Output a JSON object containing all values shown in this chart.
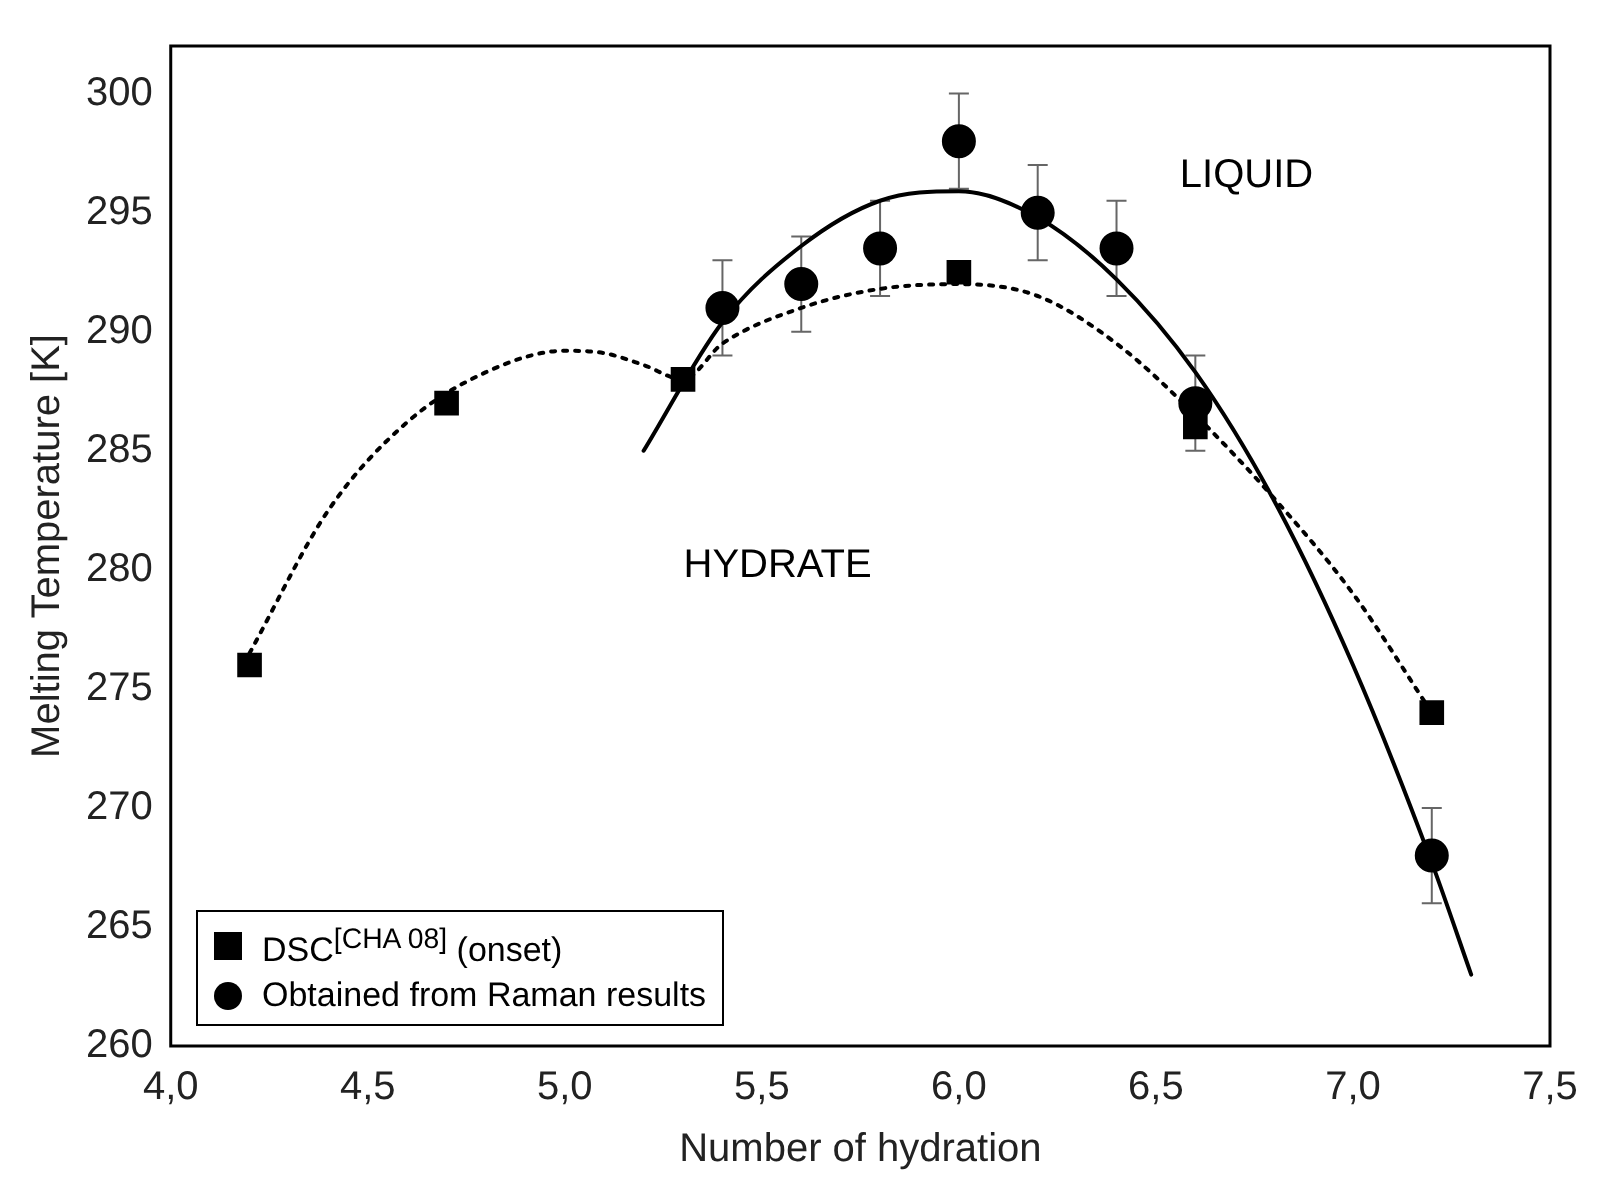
{
  "chart_data": {
    "type": "scatter",
    "xlabel": "Number of hydration",
    "ylabel": "Melting Temperature [K]",
    "xlim": [
      4.0,
      7.5
    ],
    "xticks": [
      {
        "value": 4.0,
        "label": "4,0"
      },
      {
        "value": 4.5,
        "label": "4,5"
      },
      {
        "value": 5.0,
        "label": "5,0"
      },
      {
        "value": 5.5,
        "label": "5,5"
      },
      {
        "value": 6.0,
        "label": "6,0"
      },
      {
        "value": 6.5,
        "label": "6,5"
      },
      {
        "value": 7.0,
        "label": "7,0"
      },
      {
        "value": 7.5,
        "label": "7,5"
      }
    ],
    "ylim": [
      260,
      302
    ],
    "yticks": [
      260,
      265,
      270,
      275,
      280,
      285,
      290,
      295,
      300
    ],
    "grid": false,
    "legend": "bottom left",
    "series": [
      {
        "type": "line",
        "line_style": "dotted",
        "marker": "none",
        "color": "#000000",
        "x": [
          4.2,
          4.4,
          4.6,
          4.8,
          5.0,
          5.1,
          5.2,
          5.3,
          5.4,
          5.6,
          5.8,
          6.0,
          6.2,
          6.4,
          6.6,
          6.8,
          7.0,
          7.2
        ],
        "values": [
          276.5,
          282.5,
          286.2,
          288.3,
          289.2,
          289.1,
          288.6,
          288,
          289.5,
          291,
          291.8,
          292,
          291.5,
          289.5,
          286.5,
          283,
          279,
          274
        ]
      },
      {
        "type": "line",
        "line_style": "solid",
        "marker": "none",
        "color": "#000000",
        "x": [
          5.2,
          5.4,
          5.6,
          5.8,
          6.0,
          6.2,
          6.4,
          6.6,
          6.8,
          7.0,
          7.2,
          7.3
        ],
        "values": [
          285,
          290.4,
          293.6,
          295.5,
          295.9,
          294.8,
          292.2,
          288.3,
          282.9,
          276,
          267.7,
          263
        ]
      },
      {
        "name": "DSC$^{[CHA 08]}$ (onset)",
        "marker": "square",
        "color": "#000000",
        "x": [
          4.2,
          4.7,
          5.3,
          6.0,
          6.6,
          7.2
        ],
        "values": [
          276,
          287,
          288,
          292.5,
          286,
          274
        ]
      },
      {
        "name": "Obtained from Raman results",
        "marker": "circle",
        "color": "#000000",
        "x": [
          5.4,
          5.6,
          5.8,
          6.0,
          6.2,
          6.4,
          6.6,
          7.2
        ],
        "values": [
          291,
          292,
          293.5,
          298,
          295,
          293.5,
          287,
          268
        ],
        "errors": [
          2,
          2,
          2,
          2,
          2,
          2,
          2,
          2
        ]
      }
    ],
    "annotations": [
      "LIQUID",
      "HYDRATE"
    ]
  }
}
